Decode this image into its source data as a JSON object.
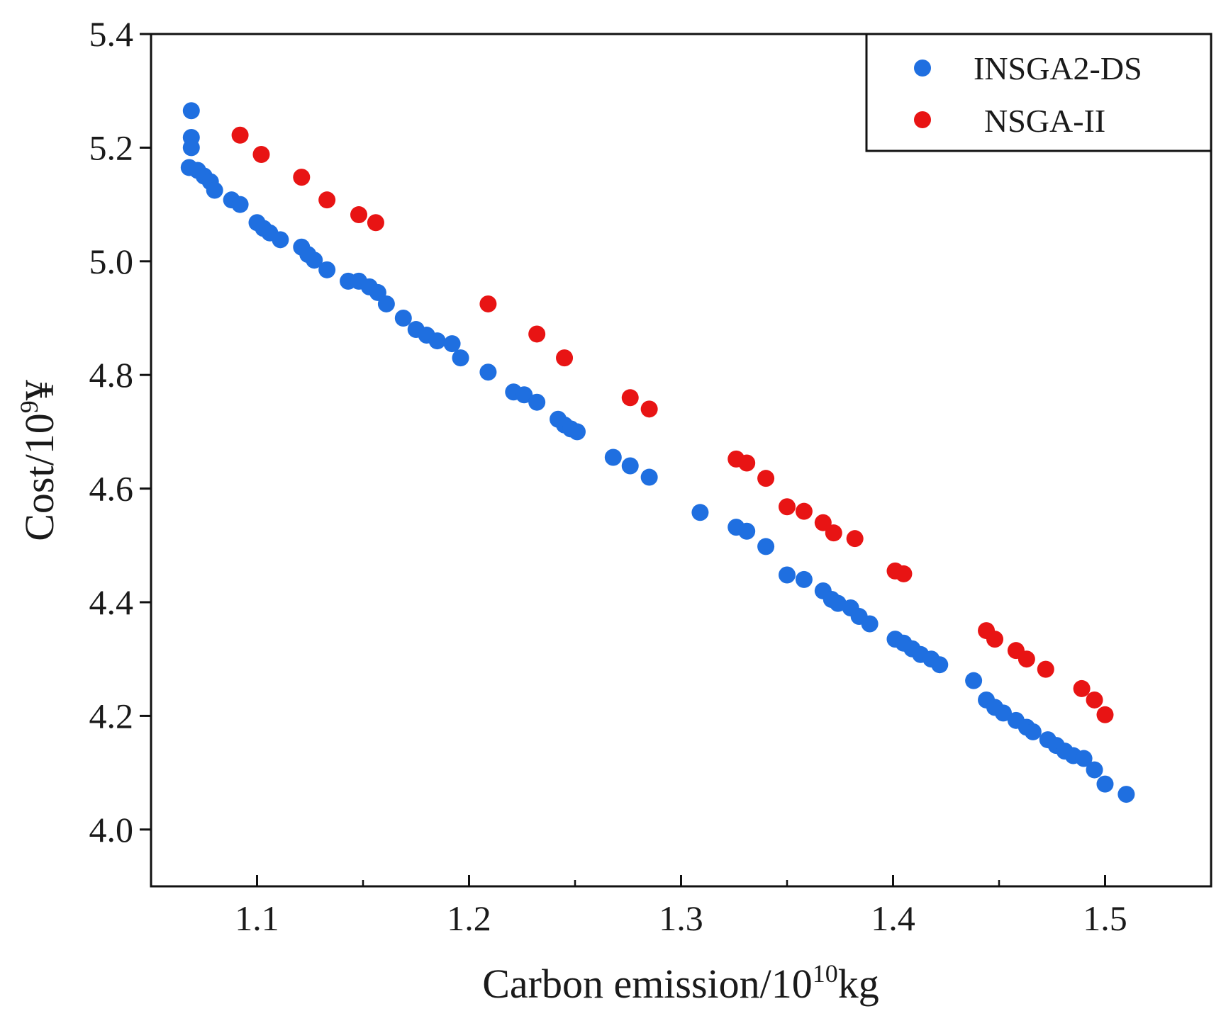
{
  "chart_data": {
    "type": "scatter",
    "xlabel": {
      "base": "Carbon emission/10",
      "sup": "10",
      "unit": "kg"
    },
    "ylabel": {
      "base": "Cost/10",
      "sup": "9",
      "unit": "¥"
    },
    "xlim": [
      1.05,
      1.55
    ],
    "ylim": [
      3.9,
      5.4
    ],
    "xticks": [
      1.1,
      1.2,
      1.3,
      1.4,
      1.5
    ],
    "xtick_labels": [
      "1.1",
      "1.2",
      "1.3",
      "1.4",
      "1.5"
    ],
    "yticks": [
      4.0,
      4.2,
      4.4,
      4.6,
      4.8,
      5.0,
      5.2,
      5.4
    ],
    "ytick_labels": [
      "4.0",
      "4.2",
      "4.4",
      "4.6",
      "4.8",
      "5.0",
      "5.2",
      "5.4"
    ],
    "legend_position": "top-right",
    "series": [
      {
        "name": "INSGA2-DS",
        "color": "#1f6fe0",
        "points": [
          [
            1.069,
            5.265
          ],
          [
            1.069,
            5.218
          ],
          [
            1.069,
            5.2
          ],
          [
            1.068,
            5.165
          ],
          [
            1.072,
            5.16
          ],
          [
            1.075,
            5.15
          ],
          [
            1.078,
            5.14
          ],
          [
            1.08,
            5.125
          ],
          [
            1.088,
            5.108
          ],
          [
            1.092,
            5.1
          ],
          [
            1.1,
            5.068
          ],
          [
            1.103,
            5.058
          ],
          [
            1.106,
            5.05
          ],
          [
            1.111,
            5.038
          ],
          [
            1.121,
            5.025
          ],
          [
            1.124,
            5.012
          ],
          [
            1.127,
            5.002
          ],
          [
            1.133,
            4.985
          ],
          [
            1.143,
            4.965
          ],
          [
            1.148,
            4.965
          ],
          [
            1.153,
            4.955
          ],
          [
            1.157,
            4.945
          ],
          [
            1.161,
            4.925
          ],
          [
            1.169,
            4.9
          ],
          [
            1.175,
            4.88
          ],
          [
            1.18,
            4.87
          ],
          [
            1.185,
            4.86
          ],
          [
            1.192,
            4.855
          ],
          [
            1.196,
            4.83
          ],
          [
            1.209,
            4.805
          ],
          [
            1.221,
            4.77
          ],
          [
            1.226,
            4.765
          ],
          [
            1.232,
            4.752
          ],
          [
            1.242,
            4.722
          ],
          [
            1.245,
            4.712
          ],
          [
            1.248,
            4.705
          ],
          [
            1.251,
            4.7
          ],
          [
            1.268,
            4.655
          ],
          [
            1.276,
            4.64
          ],
          [
            1.285,
            4.62
          ],
          [
            1.309,
            4.558
          ],
          [
            1.326,
            4.532
          ],
          [
            1.331,
            4.525
          ],
          [
            1.34,
            4.498
          ],
          [
            1.35,
            4.448
          ],
          [
            1.358,
            4.44
          ],
          [
            1.367,
            4.42
          ],
          [
            1.371,
            4.405
          ],
          [
            1.374,
            4.398
          ],
          [
            1.38,
            4.39
          ],
          [
            1.384,
            4.375
          ],
          [
            1.389,
            4.362
          ],
          [
            1.401,
            4.335
          ],
          [
            1.405,
            4.328
          ],
          [
            1.409,
            4.318
          ],
          [
            1.413,
            4.308
          ],
          [
            1.418,
            4.3
          ],
          [
            1.422,
            4.29
          ],
          [
            1.438,
            4.262
          ],
          [
            1.444,
            4.228
          ],
          [
            1.448,
            4.215
          ],
          [
            1.452,
            4.205
          ],
          [
            1.458,
            4.192
          ],
          [
            1.463,
            4.18
          ],
          [
            1.466,
            4.172
          ],
          [
            1.473,
            4.158
          ],
          [
            1.477,
            4.148
          ],
          [
            1.481,
            4.138
          ],
          [
            1.485,
            4.13
          ],
          [
            1.49,
            4.125
          ],
          [
            1.495,
            4.105
          ],
          [
            1.5,
            4.08
          ],
          [
            1.51,
            4.062
          ]
        ]
      },
      {
        "name": "NSGA-II",
        "color": "#e81414",
        "points": [
          [
            1.092,
            5.222
          ],
          [
            1.102,
            5.188
          ],
          [
            1.121,
            5.148
          ],
          [
            1.133,
            5.108
          ],
          [
            1.148,
            5.082
          ],
          [
            1.156,
            5.068
          ],
          [
            1.209,
            4.925
          ],
          [
            1.232,
            4.872
          ],
          [
            1.245,
            4.83
          ],
          [
            1.276,
            4.76
          ],
          [
            1.285,
            4.74
          ],
          [
            1.326,
            4.652
          ],
          [
            1.331,
            4.645
          ],
          [
            1.34,
            4.618
          ],
          [
            1.35,
            4.568
          ],
          [
            1.358,
            4.56
          ],
          [
            1.367,
            4.54
          ],
          [
            1.372,
            4.522
          ],
          [
            1.382,
            4.512
          ],
          [
            1.401,
            4.455
          ],
          [
            1.405,
            4.45
          ],
          [
            1.444,
            4.35
          ],
          [
            1.448,
            4.335
          ],
          [
            1.458,
            4.315
          ],
          [
            1.463,
            4.3
          ],
          [
            1.472,
            4.282
          ],
          [
            1.489,
            4.248
          ],
          [
            1.495,
            4.228
          ],
          [
            1.5,
            4.202
          ]
        ]
      }
    ]
  }
}
